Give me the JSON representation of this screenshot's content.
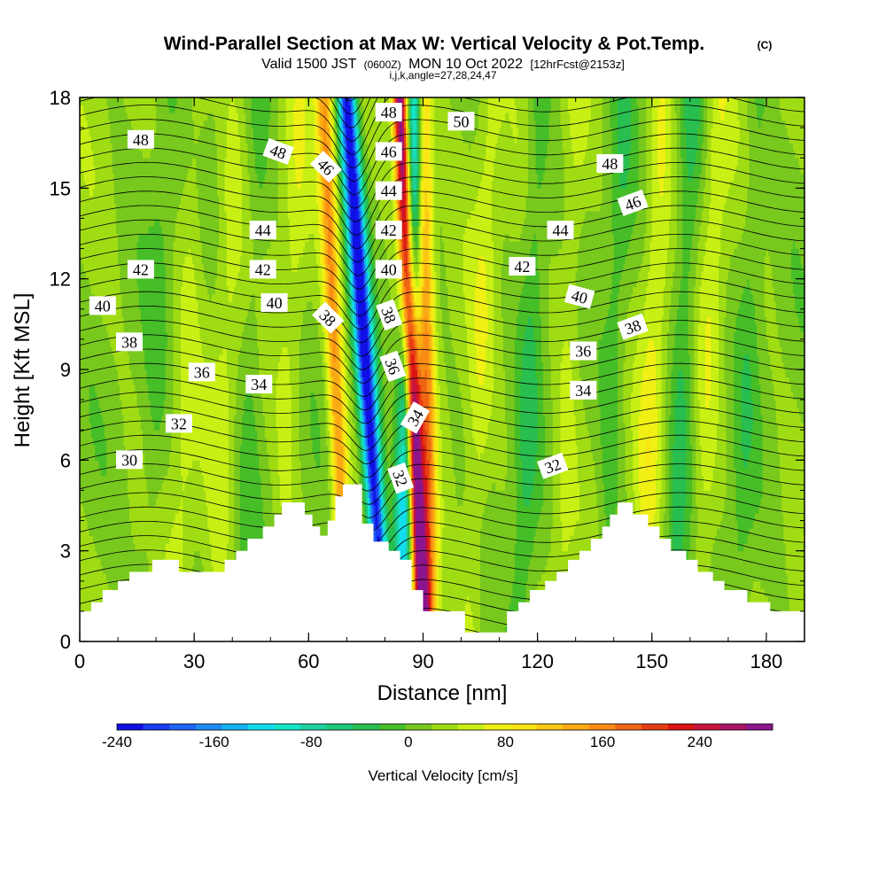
{
  "header": {
    "title": "Wind-Parallel Section at Max W: Vertical Velocity & Pot.Temp.",
    "copyright": "(C)",
    "valid_prefix": "Valid 1500 JST",
    "valid_utc": "(0600Z)",
    "valid_date": "MON 10 Oct 2022",
    "forecast": "[12hrFcst@2153z]",
    "indices": "i,j,k,angle=27,28,24,47"
  },
  "colors": {
    "palette": [
      "#1010e6",
      "#1a3cf0",
      "#1e64f5",
      "#1e8cf5",
      "#14b4f0",
      "#10dcf0",
      "#14e6c8",
      "#1ed2a0",
      "#1ec878",
      "#28be50",
      "#46be28",
      "#78c81e",
      "#a0dc14",
      "#c8f014",
      "#f0f014",
      "#fae614",
      "#fac814",
      "#faaa14",
      "#fa8c14",
      "#f06414",
      "#e63c14",
      "#dc1414",
      "#c8143c",
      "#aa1464",
      "#8c148c"
    ],
    "terrain": "#ffffff"
  },
  "chart_data": {
    "type": "heatmap",
    "xlabel": "Distance [nm]",
    "ylabel": "Height [Kft MSL]",
    "xlim": [
      0,
      190
    ],
    "ylim": [
      0,
      18
    ],
    "xticks": [
      0,
      30,
      60,
      90,
      120,
      150,
      180
    ],
    "yticks": [
      0,
      3,
      6,
      9,
      12,
      15,
      18
    ],
    "colorbar": {
      "label": "Vertical Velocity [cm/s]",
      "range": [
        -240,
        300
      ],
      "step": 20,
      "tick_values": [
        -240,
        -160,
        -80,
        0,
        80,
        160,
        240
      ]
    },
    "updraft_bands": [
      {
        "x_top": 84,
        "x_bottom": 90,
        "peak": 280,
        "kind": "core"
      },
      {
        "x_top": 64,
        "x_bottom": 70,
        "peak": 120,
        "kind": "flank"
      },
      {
        "x_top": 90,
        "x_bottom": 92,
        "peak": 120,
        "kind": "flank"
      }
    ],
    "downdraft_bands": [
      {
        "x_top": 70,
        "x_bottom": 80,
        "peak": -240
      },
      {
        "x_top": 88,
        "x_bottom": 84,
        "peak": -140
      }
    ],
    "terrain_profile": [
      [
        0,
        1.0
      ],
      [
        3,
        1.0
      ],
      [
        3,
        1.3
      ],
      [
        6,
        1.3
      ],
      [
        6,
        1.7
      ],
      [
        10,
        1.7
      ],
      [
        10,
        2.0
      ],
      [
        13,
        2.0
      ],
      [
        13,
        2.3
      ],
      [
        19,
        2.3
      ],
      [
        19,
        2.7
      ],
      [
        26,
        2.7
      ],
      [
        26,
        2.3
      ],
      [
        38,
        2.3
      ],
      [
        38,
        2.7
      ],
      [
        41,
        2.7
      ],
      [
        41,
        3.0
      ],
      [
        44,
        3.0
      ],
      [
        44,
        3.4
      ],
      [
        48,
        3.4
      ],
      [
        48,
        3.8
      ],
      [
        51,
        3.8
      ],
      [
        51,
        4.2
      ],
      [
        53,
        4.2
      ],
      [
        53,
        4.6
      ],
      [
        59,
        4.6
      ],
      [
        59,
        4.2
      ],
      [
        61,
        4.2
      ],
      [
        61,
        3.8
      ],
      [
        63,
        3.8
      ],
      [
        63,
        3.5
      ],
      [
        65,
        3.5
      ],
      [
        65,
        4.0
      ],
      [
        67,
        4.0
      ],
      [
        67,
        4.8
      ],
      [
        69,
        4.8
      ],
      [
        69,
        5.2
      ],
      [
        74,
        5.2
      ],
      [
        74,
        3.9
      ],
      [
        77,
        3.9
      ],
      [
        77,
        3.3
      ],
      [
        81,
        3.3
      ],
      [
        81,
        3.0
      ],
      [
        84,
        3.0
      ],
      [
        84,
        2.7
      ],
      [
        87,
        2.7
      ],
      [
        87,
        1.7
      ],
      [
        90,
        1.7
      ],
      [
        90,
        1.0
      ],
      [
        101,
        1.0
      ],
      [
        101,
        0.3
      ],
      [
        112,
        0.3
      ],
      [
        112,
        1.0
      ],
      [
        115,
        1.0
      ],
      [
        115,
        1.3
      ],
      [
        118,
        1.3
      ],
      [
        118,
        1.7
      ],
      [
        122,
        1.7
      ],
      [
        122,
        2.0
      ],
      [
        125,
        2.0
      ],
      [
        125,
        2.3
      ],
      [
        128,
        2.3
      ],
      [
        128,
        2.7
      ],
      [
        131,
        2.7
      ],
      [
        131,
        3.0
      ],
      [
        134,
        3.0
      ],
      [
        134,
        3.4
      ],
      [
        137,
        3.4
      ],
      [
        137,
        3.8
      ],
      [
        139,
        3.8
      ],
      [
        139,
        4.2
      ],
      [
        141,
        4.2
      ],
      [
        141,
        4.6
      ],
      [
        145,
        4.6
      ],
      [
        145,
        4.2
      ],
      [
        149,
        4.2
      ],
      [
        149,
        3.8
      ],
      [
        152,
        3.8
      ],
      [
        152,
        3.4
      ],
      [
        155,
        3.4
      ],
      [
        155,
        3.0
      ],
      [
        159,
        3.0
      ],
      [
        159,
        2.7
      ],
      [
        162,
        2.7
      ],
      [
        162,
        2.3
      ],
      [
        166,
        2.3
      ],
      [
        166,
        2.0
      ],
      [
        169,
        2.0
      ],
      [
        169,
        1.7
      ],
      [
        175,
        1.7
      ],
      [
        175,
        1.3
      ],
      [
        181,
        1.3
      ],
      [
        181,
        1.0
      ],
      [
        190,
        1.0
      ]
    ],
    "theta_contours": [
      {
        "label": "30",
        "level": 30
      },
      {
        "label": "32",
        "level": 32
      },
      {
        "label": "34",
        "level": 34
      },
      {
        "label": "36",
        "level": 36
      },
      {
        "label": "38",
        "level": 38
      },
      {
        "label": "40",
        "level": 40
      },
      {
        "label": "42",
        "level": 42
      },
      {
        "label": "44",
        "level": 44
      },
      {
        "label": "46",
        "level": 46
      },
      {
        "label": "48",
        "level": 48
      },
      {
        "label": "50",
        "level": 50
      }
    ],
    "contour_labels": [
      {
        "text": "48",
        "x": 16,
        "y": 16.6,
        "angle": 0
      },
      {
        "text": "48",
        "x": 52,
        "y": 16.2,
        "angle": 20
      },
      {
        "text": "46",
        "x": 64.5,
        "y": 15.7,
        "angle": 45
      },
      {
        "text": "48",
        "x": 81,
        "y": 17.5,
        "angle": 0
      },
      {
        "text": "46",
        "x": 81,
        "y": 16.2,
        "angle": 0
      },
      {
        "text": "44",
        "x": 81,
        "y": 14.9,
        "angle": 0
      },
      {
        "text": "42",
        "x": 81,
        "y": 13.6,
        "angle": 0
      },
      {
        "text": "40",
        "x": 81,
        "y": 12.3,
        "angle": 0
      },
      {
        "text": "38",
        "x": 81,
        "y": 10.8,
        "angle": 70
      },
      {
        "text": "36",
        "x": 82,
        "y": 9.1,
        "angle": 70
      },
      {
        "text": "34",
        "x": 88,
        "y": 7.4,
        "angle": -60
      },
      {
        "text": "32",
        "x": 84,
        "y": 5.4,
        "angle": 70
      },
      {
        "text": "50",
        "x": 100,
        "y": 17.2,
        "angle": 0
      },
      {
        "text": "48",
        "x": 139,
        "y": 15.8,
        "angle": 0
      },
      {
        "text": "46",
        "x": 145,
        "y": 14.5,
        "angle": -20
      },
      {
        "text": "44",
        "x": 126,
        "y": 13.6,
        "angle": 0
      },
      {
        "text": "42",
        "x": 116,
        "y": 12.4,
        "angle": 0
      },
      {
        "text": "40",
        "x": 131,
        "y": 11.4,
        "angle": 15
      },
      {
        "text": "38",
        "x": 145,
        "y": 10.4,
        "angle": -20
      },
      {
        "text": "36",
        "x": 132,
        "y": 9.6,
        "angle": 0
      },
      {
        "text": "34",
        "x": 132,
        "y": 8.3,
        "angle": 0
      },
      {
        "text": "32",
        "x": 124,
        "y": 5.8,
        "angle": -20
      },
      {
        "text": "44",
        "x": 48,
        "y": 13.6,
        "angle": 0
      },
      {
        "text": "42",
        "x": 48,
        "y": 12.3,
        "angle": 0
      },
      {
        "text": "40",
        "x": 51,
        "y": 11.2,
        "angle": 0
      },
      {
        "text": "38",
        "x": 65,
        "y": 10.7,
        "angle": 45
      },
      {
        "text": "36",
        "x": 32,
        "y": 8.9,
        "angle": 0
      },
      {
        "text": "34",
        "x": 47,
        "y": 8.5,
        "angle": 0
      },
      {
        "text": "32",
        "x": 26,
        "y": 7.2,
        "angle": 0
      },
      {
        "text": "30",
        "x": 13,
        "y": 6.0,
        "angle": 0
      },
      {
        "text": "38",
        "x": 13,
        "y": 9.9,
        "angle": 0
      },
      {
        "text": "40",
        "x": 6,
        "y": 11.1,
        "angle": 0
      },
      {
        "text": "42",
        "x": 16,
        "y": 12.3,
        "angle": 0
      }
    ]
  }
}
